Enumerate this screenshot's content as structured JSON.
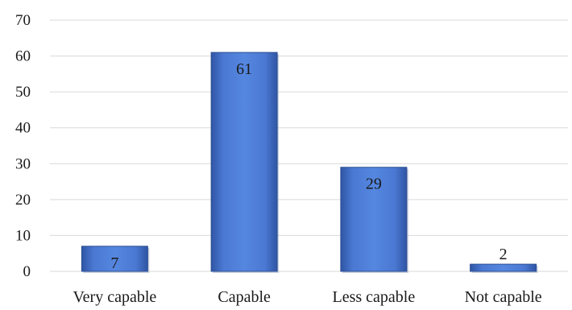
{
  "chart_data": {
    "type": "bar",
    "categories": [
      "Very capable",
      "Capable",
      "Less capable",
      "Not capable"
    ],
    "values": [
      7,
      61,
      29,
      2
    ],
    "data_labels": [
      "7",
      "61",
      "29",
      "2"
    ],
    "title": "",
    "xlabel": "",
    "ylabel": "",
    "ylim": [
      0,
      70
    ],
    "yticks": [
      "0",
      "10",
      "20",
      "30",
      "40",
      "50",
      "60",
      "70"
    ],
    "grid": true,
    "legend": "none",
    "bar_color": "#4472C4"
  }
}
